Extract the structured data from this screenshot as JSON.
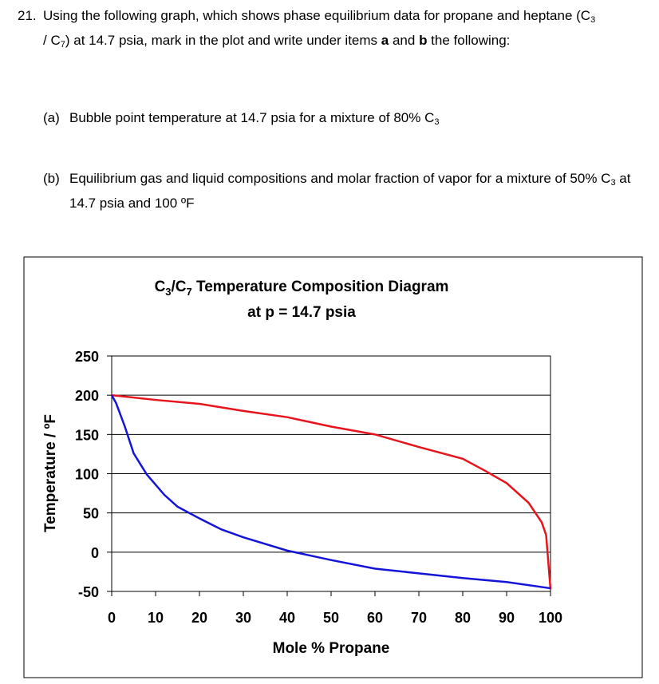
{
  "question": {
    "number": "21.",
    "text": [
      "Using the following graph, which shows phase equilibrium data for propane and heptane (C",
      "3",
      " / C",
      "7",
      ") at 14.7 psia, mark in the plot and write under items ",
      "a",
      " and ",
      "b",
      " the following:"
    ]
  },
  "items": [
    {
      "label": "(a)",
      "text": [
        "Bubble point temperature at 14.7 psia for a mixture of 80% C",
        "3"
      ]
    },
    {
      "label": "(b)",
      "text": [
        "Equilibrium gas and liquid compositions and molar fraction of vapor for a mixture of 50% C",
        "3",
        " at 14.7 psia and 100 ºF"
      ]
    }
  ],
  "chart_data": {
    "type": "line",
    "title": [
      "C",
      "3",
      "/C",
      "7",
      " Temperature Composition Diagram"
    ],
    "subtitle": "at p = 14.7 psia",
    "x_label": "Mole % Propane",
    "y_label": "Temperature / ºF",
    "xlim": [
      0,
      100
    ],
    "xticks": [
      0,
      10,
      20,
      30,
      40,
      50,
      60,
      70,
      80,
      90,
      100
    ],
    "ylim": [
      -50,
      250
    ],
    "yticks": [
      -50,
      0,
      50,
      100,
      150,
      200,
      250
    ],
    "grid": true,
    "series": [
      {
        "color": "#e8141b",
        "x": [
          0,
          10,
          20,
          30,
          40,
          50,
          60,
          70,
          80,
          85,
          90,
          95,
          98,
          99,
          100
        ],
        "values": [
          200,
          194,
          189,
          180,
          172,
          160,
          150,
          134,
          119,
          104,
          88,
          63,
          38,
          22,
          -47
        ]
      },
      {
        "color": "#1414d8",
        "x": [
          0,
          1,
          3,
          5,
          8,
          12,
          15,
          20,
          25,
          30,
          40,
          50,
          60,
          70,
          80,
          90,
          100
        ],
        "values": [
          200,
          190,
          160,
          126,
          99,
          73,
          58,
          43,
          29,
          19,
          2,
          -10,
          -21,
          -27,
          -33,
          -38,
          -46
        ]
      }
    ]
  }
}
